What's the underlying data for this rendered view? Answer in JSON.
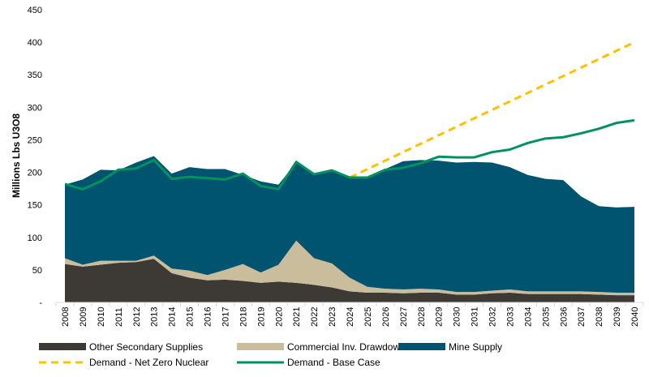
{
  "chart_data": {
    "type": "area",
    "ylabel": "Millions Lbs U3O8",
    "ylim": [
      0,
      450
    ],
    "yticks": [
      0,
      50,
      100,
      150,
      200,
      250,
      300,
      350,
      400,
      450
    ],
    "ytick_labels": [
      "-",
      "50",
      "100",
      "150",
      "200",
      "250",
      "300",
      "350",
      "400",
      "450"
    ],
    "x": [
      2008,
      2009,
      2010,
      2011,
      2012,
      2013,
      2014,
      2015,
      2016,
      2017,
      2018,
      2019,
      2020,
      2021,
      2022,
      2023,
      2024,
      2025,
      2026,
      2027,
      2028,
      2029,
      2030,
      2031,
      2032,
      2033,
      2034,
      2035,
      2036,
      2037,
      2038,
      2039,
      2040
    ],
    "stacked_series": [
      {
        "name": "Other Secondary Supplies",
        "color": "#3d3935",
        "values": [
          59,
          55,
          58,
          61,
          62,
          67,
          45,
          38,
          34,
          35,
          33,
          30,
          32,
          30,
          27,
          23,
          17,
          15,
          15,
          14,
          15,
          15,
          12,
          12,
          14,
          15,
          13,
          13,
          13,
          13,
          12,
          11,
          11
        ]
      },
      {
        "name": "Commercial Inv. Drawdown/Sales",
        "color": "#c9bd9c",
        "values": [
          9,
          3,
          6,
          3,
          2,
          5,
          7,
          11,
          8,
          15,
          26,
          16,
          26,
          65,
          41,
          37,
          21,
          9,
          6,
          6,
          6,
          5,
          4,
          4,
          4,
          5,
          4,
          4,
          4,
          4,
          4,
          4,
          4
        ]
      },
      {
        "name": "Mine Supply",
        "color": "#00546f",
        "values": [
          113,
          131,
          140,
          139,
          151,
          153,
          146,
          159,
          163,
          155,
          137,
          140,
          123,
          120,
          128,
          143,
          153,
          169,
          184,
          197,
          198,
          198,
          199,
          200,
          197,
          188,
          179,
          173,
          171,
          146,
          132,
          131,
          132
        ]
      }
    ],
    "line_series": [
      {
        "name": "Demand - Net Zero Nuclear",
        "color": "#ffc000",
        "dashed": true,
        "x": [
          2024,
          2025,
          2026,
          2027,
          2028,
          2029,
          2030,
          2031,
          2032,
          2033,
          2034,
          2035,
          2036,
          2037,
          2038,
          2039,
          2040
        ],
        "values": [
          192,
          205,
          218,
          231,
          244,
          257,
          270,
          283,
          296,
          309,
          322,
          335,
          348,
          361,
          374,
          387,
          400
        ]
      },
      {
        "name": "Demand - Base Case",
        "color": "#00925f",
        "dashed": false,
        "x": [
          2008,
          2009,
          2010,
          2011,
          2012,
          2013,
          2014,
          2015,
          2016,
          2017,
          2018,
          2019,
          2020,
          2021,
          2022,
          2023,
          2024,
          2025,
          2026,
          2027,
          2028,
          2029,
          2030,
          2031,
          2032,
          2033,
          2034,
          2035,
          2036,
          2037,
          2038,
          2039,
          2040
        ],
        "values": [
          182,
          174,
          186,
          204,
          206,
          219,
          190,
          193,
          191,
          189,
          198,
          179,
          174,
          216,
          197,
          203,
          192,
          192,
          204,
          207,
          214,
          224,
          223,
          223,
          231,
          235,
          245,
          252,
          254,
          260,
          267,
          276,
          280
        ]
      }
    ],
    "legend_position": "bottom",
    "grid": false
  }
}
